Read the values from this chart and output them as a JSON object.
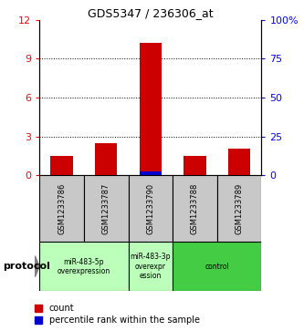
{
  "title": "GDS5347 / 236306_at",
  "samples": [
    "GSM1233786",
    "GSM1233787",
    "GSM1233790",
    "GSM1233788",
    "GSM1233789"
  ],
  "counts": [
    1.5,
    2.5,
    10.2,
    1.5,
    2.1
  ],
  "percentiles": [
    0.12,
    0.22,
    2.7,
    0.22,
    0.22
  ],
  "ylim_left": [
    0,
    12
  ],
  "ylim_right": [
    0,
    100
  ],
  "yticks_left": [
    0,
    3,
    6,
    9,
    12
  ],
  "yticks_right": [
    0,
    25,
    50,
    75,
    100
  ],
  "yticklabels_right": [
    "0",
    "25",
    "50",
    "75",
    "100%"
  ],
  "bar_color": "#cc0000",
  "marker_color": "#0000cc",
  "sample_bg_color": "#c8c8c8",
  "group_configs": [
    {
      "indices": [
        0,
        1
      ],
      "label": "miR-483-5p\noverexpression",
      "color": "#bbffbb"
    },
    {
      "indices": [
        2
      ],
      "label": "miR-483-3p\noverexpr\nession",
      "color": "#bbffbb"
    },
    {
      "indices": [
        3,
        4
      ],
      "label": "control",
      "color": "#44cc44"
    }
  ],
  "protocol_label": "protocol",
  "legend_count_label": "count",
  "legend_pct_label": "percentile rank within the sample",
  "bar_width": 0.5
}
